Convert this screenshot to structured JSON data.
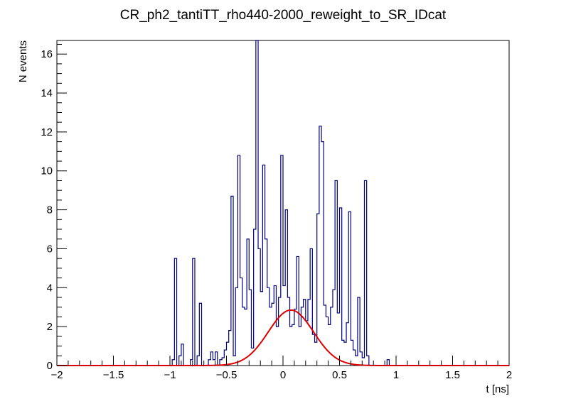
{
  "chart_data": {
    "type": "histogram",
    "title": "CR_ph2_tantiTT_rho440-2000_reweight_to_SR_IDcat",
    "xlabel": "t [ns]",
    "ylabel": "N events",
    "xlim": [
      -2,
      2
    ],
    "ylim": [
      0,
      16.7
    ],
    "x_ticks": [
      "−2",
      "−1.5",
      "−1",
      "−0.5",
      "0",
      "0.5",
      "1",
      "1.5",
      "2"
    ],
    "y_ticks": [
      "0",
      "2",
      "4",
      "6",
      "8",
      "10",
      "12",
      "14",
      "16"
    ],
    "grid": false,
    "histogram_color": "#000080",
    "fit_color": "#dd0000",
    "bin_width": 0.02,
    "histogram": {
      "bin_centers": [
        -0.97,
        -0.95,
        -0.91,
        -0.89,
        -0.81,
        -0.79,
        -0.75,
        -0.73,
        -0.65,
        -0.63,
        -0.61,
        -0.59,
        -0.55,
        -0.53,
        -0.51,
        -0.49,
        -0.47,
        -0.45,
        -0.43,
        -0.41,
        -0.39,
        -0.37,
        -0.35,
        -0.33,
        -0.31,
        -0.29,
        -0.27,
        -0.25,
        -0.23,
        -0.21,
        -0.19,
        -0.17,
        -0.15,
        -0.13,
        -0.11,
        -0.09,
        -0.07,
        -0.05,
        -0.03,
        -0.01,
        0.01,
        0.03,
        0.05,
        0.07,
        0.09,
        0.11,
        0.13,
        0.15,
        0.17,
        0.19,
        0.21,
        0.23,
        0.25,
        0.27,
        0.29,
        0.31,
        0.33,
        0.35,
        0.37,
        0.39,
        0.41,
        0.43,
        0.45,
        0.47,
        0.49,
        0.51,
        0.53,
        0.55,
        0.57,
        0.59,
        0.61,
        0.63,
        0.65,
        0.67,
        0.69,
        0.71,
        0.73,
        0.75,
        0.93
      ],
      "values": [
        0.3,
        5.5,
        0.5,
        1.1,
        0.3,
        5.5,
        0.5,
        3.2,
        0.3,
        0.7,
        0.3,
        0.7,
        0.3,
        0.4,
        0.8,
        1.2,
        1.8,
        8.7,
        0.5,
        4.0,
        10.8,
        4.5,
        3.0,
        2.9,
        6.5,
        3.9,
        0.9,
        7.0,
        16.7,
        6.0,
        3.8,
        10.3,
        6.5,
        4.0,
        3.0,
        3.2,
        4.1,
        2.0,
        3.5,
        10.8,
        4.1,
        8.0,
        3.5,
        2.0,
        2.1,
        2.9,
        5.6,
        2.0,
        3.0,
        3.4,
        2.3,
        3.4,
        6.0,
        1.6,
        1.2,
        7.8,
        12.3,
        11.5,
        3.1,
        2.5,
        2.1,
        3.0,
        3.9,
        9.5,
        2.7,
        8.1,
        1.3,
        1.2,
        2.2,
        7.9,
        1.3,
        0.8,
        0.5,
        3.5,
        0.7,
        0.4,
        9.5,
        0.5,
        0.3
      ]
    },
    "fit": {
      "function": "gaussian",
      "mean": 0.07,
      "sigma": 0.2,
      "amplitude": 2.85
    }
  }
}
